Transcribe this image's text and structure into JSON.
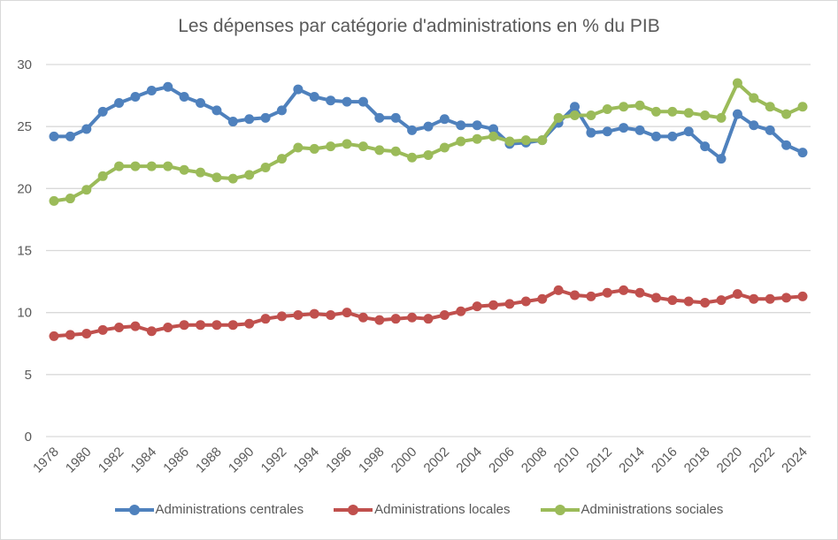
{
  "chart_data": {
    "type": "line",
    "title": "Les dépenses par catégorie d'administrations  en % du PIB",
    "xlabel": "",
    "ylabel": "",
    "ylim": [
      0,
      30
    ],
    "yticks": [
      0,
      5,
      10,
      15,
      20,
      25,
      30
    ],
    "grid": true,
    "legend": "bottom",
    "x": [
      1978,
      1979,
      1980,
      1981,
      1982,
      1983,
      1984,
      1985,
      1986,
      1987,
      1988,
      1989,
      1990,
      1991,
      1992,
      1993,
      1994,
      1995,
      1996,
      1997,
      1998,
      1999,
      2000,
      2001,
      2002,
      2003,
      2004,
      2005,
      2006,
      2007,
      2008,
      2009,
      2010,
      2011,
      2012,
      2013,
      2014,
      2015,
      2016,
      2017,
      2018,
      2019,
      2020,
      2021,
      2022,
      2023,
      2024
    ],
    "xtick_labels": [
      "1978",
      "1980",
      "1982",
      "1984",
      "1986",
      "1988",
      "1990",
      "1992",
      "1994",
      "1996",
      "1998",
      "2000",
      "2002",
      "2004",
      "2006",
      "2008",
      "2010",
      "2012",
      "2014",
      "2016",
      "2018",
      "2020",
      "2022",
      "2024"
    ],
    "series": [
      {
        "name": "Administrations centrales",
        "color": "#4f81bd",
        "values": [
          24.2,
          24.2,
          24.8,
          26.2,
          26.9,
          27.4,
          27.9,
          28.2,
          27.4,
          26.9,
          26.3,
          25.4,
          25.6,
          25.7,
          26.3,
          28.0,
          27.4,
          27.1,
          27.0,
          27.0,
          25.7,
          25.7,
          24.7,
          25.0,
          25.6,
          25.1,
          25.1,
          24.8,
          23.6,
          23.7,
          23.9,
          25.3,
          26.6,
          24.5,
          24.6,
          24.9,
          24.7,
          24.2,
          24.2,
          24.6,
          23.4,
          22.4,
          26.0,
          25.1,
          24.7,
          23.5,
          22.9
        ]
      },
      {
        "name": "Administrations locales",
        "color": "#c0504d",
        "values": [
          8.1,
          8.2,
          8.3,
          8.6,
          8.8,
          8.9,
          8.5,
          8.8,
          9.0,
          9.0,
          9.0,
          9.0,
          9.1,
          9.5,
          9.7,
          9.8,
          9.9,
          9.8,
          10.0,
          9.6,
          9.4,
          9.5,
          9.6,
          9.5,
          9.8,
          10.1,
          10.5,
          10.6,
          10.7,
          10.9,
          11.1,
          11.8,
          11.4,
          11.3,
          11.6,
          11.8,
          11.6,
          11.2,
          11.0,
          10.9,
          10.8,
          11.0,
          11.5,
          11.1,
          11.1,
          11.2,
          11.3
        ]
      },
      {
        "name": "Administrations sociales",
        "color": "#9bbb59",
        "values": [
          19.0,
          19.2,
          19.9,
          21.0,
          21.8,
          21.8,
          21.8,
          21.8,
          21.5,
          21.3,
          20.9,
          20.8,
          21.1,
          21.7,
          22.4,
          23.3,
          23.2,
          23.4,
          23.6,
          23.4,
          23.1,
          23.0,
          22.5,
          22.7,
          23.3,
          23.8,
          24.0,
          24.2,
          23.8,
          23.9,
          23.9,
          25.7,
          25.9,
          25.9,
          26.4,
          26.6,
          26.7,
          26.2,
          26.2,
          26.1,
          25.9,
          25.7,
          28.5,
          27.3,
          26.6,
          26.0,
          26.6
        ]
      }
    ]
  }
}
